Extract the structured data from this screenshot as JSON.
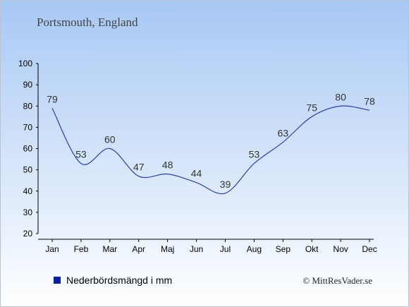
{
  "header": {
    "title": "Portsmouth, England"
  },
  "legend": {
    "label": "Nederbördsmängd i mm",
    "color": "#0a1fa8"
  },
  "credit": {
    "text": "© MittResVader.se"
  },
  "colors": {
    "bg_top": "#a7c8f4",
    "bg_bottom": "#ffffff",
    "line": "#2b3fb0",
    "axis": "#000000"
  },
  "chart_data": {
    "type": "line",
    "categories": [
      "Jan",
      "Feb",
      "Mar",
      "Apr",
      "Maj",
      "Jun",
      "Jul",
      "Aug",
      "Sep",
      "Okt",
      "Nov",
      "Dec"
    ],
    "series": [
      {
        "name": "Nederbördsmängd i mm",
        "values": [
          79,
          53,
          60,
          47,
          48,
          44,
          39,
          53,
          63,
          75,
          80,
          78
        ]
      }
    ],
    "ylim": [
      20,
      100
    ],
    "yticks": [
      20,
      30,
      40,
      50,
      60,
      70,
      80,
      90,
      100
    ],
    "grid": false,
    "legend_position": "bottom-left"
  }
}
